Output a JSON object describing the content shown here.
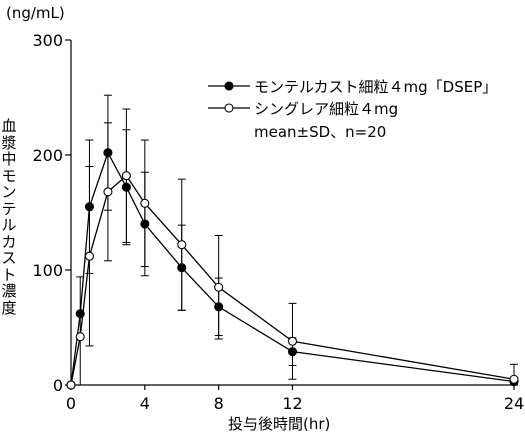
{
  "chart_data": {
    "type": "line",
    "unit_label": "(ng/mL)",
    "ylabel": "血漿中モンテルカスト濃度",
    "xlabel": "投与後時間(hr)",
    "x_ticks": [
      0,
      4,
      8,
      12,
      24
    ],
    "y_ticks": [
      0,
      100,
      200,
      300
    ],
    "xlim": [
      0,
      24
    ],
    "ylim": [
      0,
      300
    ],
    "legend_position": "top-right",
    "legend_note": "mean±SD、n=20",
    "series": [
      {
        "name": "モンテルカスト細粒４mg「DSEP」",
        "marker": "filled-circle",
        "color": "#000000",
        "x": [
          0,
          0.5,
          1,
          2,
          3,
          4,
          6,
          8,
          12,
          24
        ],
        "y": [
          0,
          62,
          155,
          202,
          172,
          140,
          102,
          68,
          29,
          3
        ],
        "sd": [
          0,
          0,
          58,
          50,
          50,
          45,
          37,
          25,
          12,
          0
        ]
      },
      {
        "name": "シングレア細粒４mg",
        "marker": "open-circle",
        "color": "#000000",
        "x": [
          0,
          0.5,
          1,
          2,
          3,
          4,
          6,
          8,
          12,
          24
        ],
        "y": [
          0,
          42,
          112,
          168,
          182,
          158,
          122,
          85,
          38,
          5
        ],
        "sd": [
          0,
          52,
          78,
          60,
          58,
          55,
          57,
          45,
          33,
          13
        ]
      }
    ]
  }
}
